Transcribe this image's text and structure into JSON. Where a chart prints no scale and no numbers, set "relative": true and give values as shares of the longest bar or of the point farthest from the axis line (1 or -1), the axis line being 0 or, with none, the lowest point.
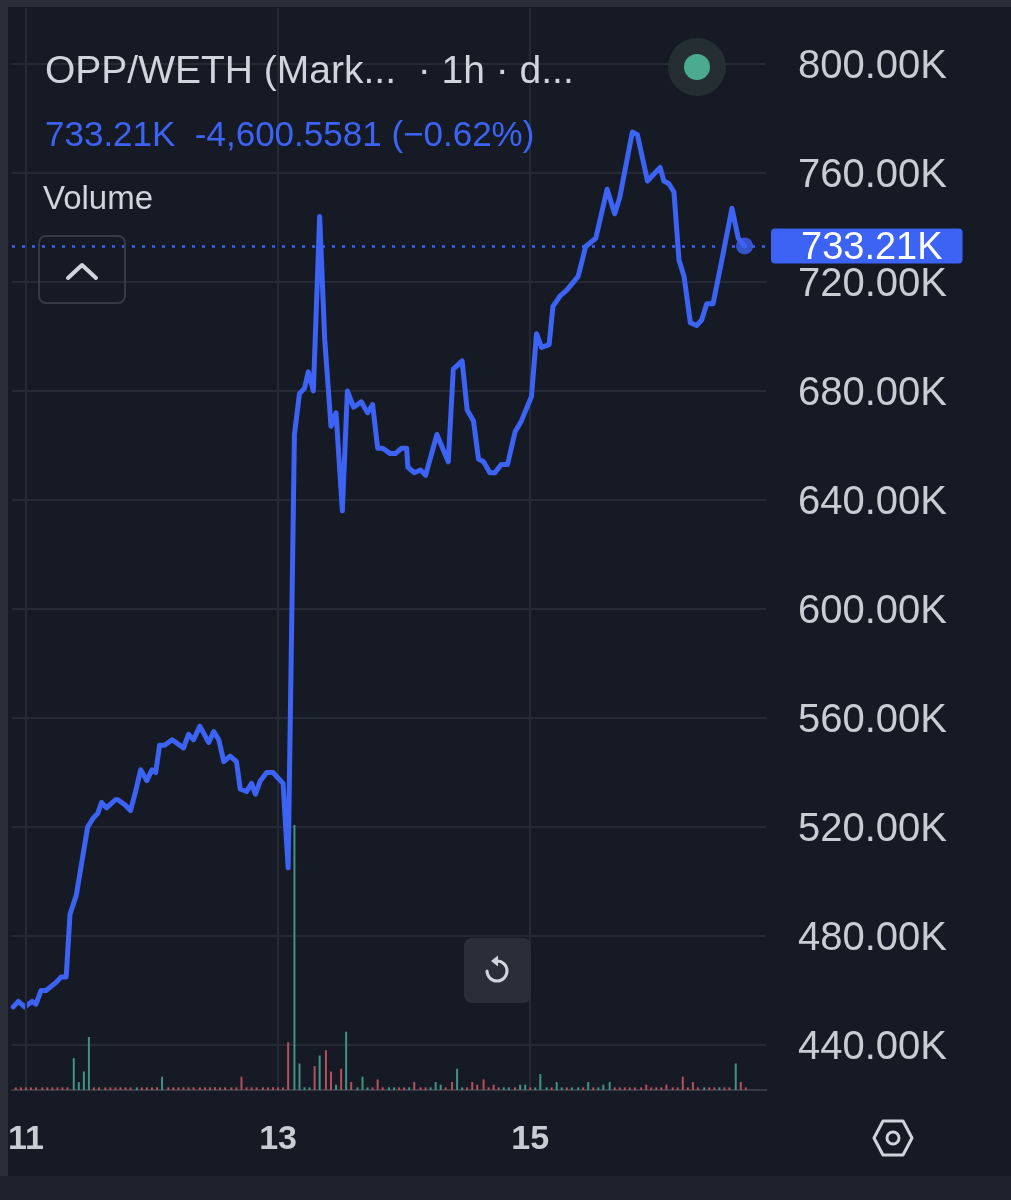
{
  "chart_data": [
    {
      "type": "line",
      "title": "OPP/WETH (Mark...  · 1h · d...",
      "subtitle": "733.21K  -4,600.5581 (−0.62%)",
      "xlim": [
        10.89,
        16.87
      ],
      "xticks": [
        11,
        13,
        15
      ],
      "ylim": [
        423.5,
        820.5
      ],
      "yticks": [
        {
          "value": 440,
          "label": "440.00K"
        },
        {
          "value": 480,
          "label": "480.00K"
        },
        {
          "value": 520,
          "label": "520.00K"
        },
        {
          "value": 560,
          "label": "560.00K"
        },
        {
          "value": 600,
          "label": "600.00K"
        },
        {
          "value": 640,
          "label": "640.00K"
        },
        {
          "value": 680,
          "label": "680.00K"
        },
        {
          "value": 720,
          "label": "720.00K"
        },
        {
          "value": 760,
          "label": "760.00K"
        },
        {
          "value": 800,
          "label": "800.00K"
        }
      ],
      "grid": true,
      "ref_lines": [
        {
          "axis": "y",
          "value": 733.21,
          "label": "733.21K",
          "color": "#3d63f5",
          "line_style": "dotted"
        }
      ],
      "series": [
        {
          "type": "line",
          "color": "#3d63f5",
          "marker": "none",
          "line_style": "solid",
          "x": [
            10.9,
            10.94,
            10.99,
            11.05,
            11.08,
            11.12,
            11.16,
            11.24,
            11.28,
            11.32,
            11.35,
            11.4,
            11.49,
            11.53,
            11.57,
            11.6,
            11.64,
            11.71,
            11.73,
            11.79,
            11.83,
            11.87,
            11.91,
            11.96,
            12.0,
            12.03,
            12.06,
            12.1,
            12.16,
            12.25,
            12.29,
            12.33,
            12.38,
            12.45,
            12.49,
            12.53,
            12.57,
            12.62,
            12.67,
            12.7,
            12.75,
            12.79,
            12.82,
            12.86,
            12.91,
            12.96,
            13.0,
            13.04,
            13.08,
            13.13,
            13.17,
            13.21,
            13.24,
            13.28,
            13.33,
            13.37,
            13.42,
            13.46,
            13.51,
            13.55,
            13.6,
            13.66,
            13.71,
            13.75,
            13.79,
            13.83,
            13.89,
            13.93,
            13.98,
            14.02,
            14.03,
            14.08,
            14.13,
            14.17,
            14.26,
            14.35,
            14.39,
            14.46,
            14.5,
            14.55,
            14.59,
            14.63,
            14.68,
            14.72,
            14.77,
            14.82,
            14.88,
            14.93,
            15.01,
            15.05,
            15.09,
            15.15,
            15.18,
            15.24,
            15.29,
            15.38,
            15.44,
            15.52,
            15.61,
            15.67,
            15.71,
            15.81,
            15.85,
            15.93,
            16.03,
            16.06,
            16.1,
            16.14,
            16.18,
            16.22,
            16.27,
            16.32,
            16.36,
            16.4,
            16.45,
            16.52,
            16.6,
            16.65,
            16.7
          ],
          "values": [
            454,
            456,
            454,
            456,
            455,
            460,
            460,
            463,
            465,
            465,
            488,
            495,
            520,
            523,
            525,
            529,
            527,
            530,
            530,
            528,
            526,
            533,
            541,
            537,
            541,
            540,
            550,
            550,
            552,
            549,
            554,
            552,
            557,
            551,
            555,
            552,
            544,
            546,
            544,
            534,
            533,
            536,
            532,
            537,
            540,
            540,
            538,
            536,
            505,
            664,
            679,
            681,
            687,
            680,
            744,
            699,
            667,
            672,
            636,
            680,
            674,
            676,
            672,
            675,
            659,
            659,
            657,
            657,
            659,
            659,
            652,
            650,
            651,
            649,
            664,
            654,
            688,
            691,
            673,
            669,
            655,
            654,
            650,
            650,
            653,
            653,
            665,
            669,
            678,
            701,
            696,
            697,
            711,
            715,
            717,
            722,
            733,
            736,
            754,
            745,
            751,
            775,
            774,
            757,
            762,
            757,
            756,
            753,
            728,
            722,
            705,
            704,
            706,
            712,
            712,
            728,
            747,
            736,
            733.21
          ]
        },
        {
          "type": "scatter",
          "color": "#3d63f5",
          "marker": "circle",
          "x": [
            16.7
          ],
          "values": [
            733.21
          ]
        }
      ]
    },
    {
      "type": "bar",
      "title": "Volume",
      "relative": true,
      "xlim": [
        10.89,
        16.87
      ],
      "xticks": [
        11,
        13,
        15
      ],
      "tick_labels": false,
      "grid": "x",
      "x": [
        10.92,
        10.96,
        11.0,
        11.04,
        11.08,
        11.13,
        11.17,
        11.21,
        11.25,
        11.29,
        11.33,
        11.38,
        11.42,
        11.46,
        11.5,
        11.54,
        11.58,
        11.63,
        11.67,
        11.71,
        11.75,
        11.79,
        11.83,
        11.88,
        11.92,
        11.96,
        12.0,
        12.04,
        12.08,
        12.13,
        12.17,
        12.21,
        12.25,
        12.29,
        12.33,
        12.38,
        12.42,
        12.46,
        12.5,
        12.54,
        12.58,
        12.63,
        12.67,
        12.71,
        12.75,
        12.79,
        12.83,
        12.88,
        12.92,
        12.96,
        13.0,
        13.04,
        13.08,
        13.13,
        13.17,
        13.21,
        13.25,
        13.29,
        13.33,
        13.38,
        13.42,
        13.46,
        13.5,
        13.54,
        13.58,
        13.63,
        13.67,
        13.71,
        13.75,
        13.79,
        13.83,
        13.88,
        13.92,
        13.96,
        14.0,
        14.04,
        14.08,
        14.13,
        14.17,
        14.21,
        14.25,
        14.29,
        14.33,
        14.38,
        14.42,
        14.46,
        14.5,
        14.54,
        14.58,
        14.63,
        14.67,
        14.71,
        14.75,
        14.79,
        14.83,
        14.88,
        14.92,
        14.96,
        15.0,
        15.04,
        15.08,
        15.13,
        15.17,
        15.21,
        15.25,
        15.29,
        15.33,
        15.38,
        15.42,
        15.46,
        15.5,
        15.54,
        15.58,
        15.63,
        15.67,
        15.71,
        15.75,
        15.79,
        15.83,
        15.88,
        15.92,
        15.96,
        16.0,
        16.04,
        16.08,
        16.13,
        16.17,
        16.21,
        16.25,
        16.29,
        16.33,
        16.38,
        16.42,
        16.46,
        16.5,
        16.54,
        16.58,
        16.63,
        16.67,
        16.71
      ],
      "values": [
        0.01,
        0.01,
        0.01,
        0.01,
        0.01,
        0.01,
        0.01,
        0.01,
        0.01,
        0.01,
        0.01,
        0.12,
        0.03,
        0.07,
        0.2,
        0.01,
        0.01,
        0.01,
        0.01,
        0.01,
        0.01,
        0.01,
        0.01,
        0.01,
        0.01,
        0.01,
        0.01,
        0.01,
        0.05,
        0.01,
        0.01,
        0.01,
        0.01,
        0.01,
        0.01,
        0.01,
        0.01,
        0.01,
        0.01,
        0.01,
        0.01,
        0.01,
        0.01,
        0.05,
        0.01,
        0.01,
        0.01,
        0.01,
        0.01,
        0.01,
        0.01,
        0.01,
        0.18,
        1,
        0.1,
        0.01,
        0.01,
        0.09,
        0.13,
        0.15,
        0.07,
        0.02,
        0.08,
        0.22,
        0.03,
        0.01,
        0.05,
        0.01,
        0.01,
        0.04,
        0.01,
        0.01,
        0.01,
        0.01,
        0.01,
        0.01,
        0.03,
        0.01,
        0.01,
        0.01,
        0.03,
        0.02,
        0.01,
        0.03,
        0.08,
        0.01,
        0.01,
        0.03,
        0.02,
        0.04,
        0.01,
        0.02,
        0.01,
        0.01,
        0.01,
        0.01,
        0.02,
        0.02,
        0.01,
        0.01,
        0.06,
        0.01,
        0.01,
        0.03,
        0.01,
        0.01,
        0.01,
        0.01,
        0.01,
        0.03,
        0.01,
        0.01,
        0.02,
        0.03,
        0.01,
        0.01,
        0.01,
        0.01,
        0.01,
        0.01,
        0.02,
        0.01,
        0.01,
        0.01,
        0.02,
        0.01,
        0.01,
        0.05,
        0.01,
        0.03,
        0.01,
        0.01,
        0.01,
        0.01,
        0.01,
        0.01,
        0.01,
        0.1,
        0.03,
        0.01
      ],
      "colors": [
        "#b5505b",
        "#b5505b",
        "#b5505b",
        "#b5505b",
        "#b5505b",
        "#b5505b",
        "#b5505b",
        "#b5505b",
        "#b5505b",
        "#b5505b",
        "#b5505b",
        "#3f9387",
        "#3f9387",
        "#3f9387",
        "#3f9387",
        "#b5505b",
        "#b5505b",
        "#b5505b",
        "#b5505b",
        "#b5505b",
        "#b5505b",
        "#b5505b",
        "#b5505b",
        "#3f9387",
        "#b5505b",
        "#b5505b",
        "#b5505b",
        "#b5505b",
        "#3f9387",
        "#b5505b",
        "#b5505b",
        "#b5505b",
        "#b5505b",
        "#b5505b",
        "#b5505b",
        "#b5505b",
        "#b5505b",
        "#b5505b",
        "#b5505b",
        "#b5505b",
        "#b5505b",
        "#b5505b",
        "#b5505b",
        "#b5505b",
        "#b5505b",
        "#b5505b",
        "#b5505b",
        "#b5505b",
        "#b5505b",
        "#b5505b",
        "#b5505b",
        "#b5505b",
        "#b5505b",
        "#3f9387",
        "#3f9387",
        "#3f9387",
        "#3f9387",
        "#b5505b",
        "#3f9387",
        "#b5505b",
        "#b5505b",
        "#3f9387",
        "#b5505b",
        "#3f9387",
        "#b5505b",
        "#3f9387",
        "#3f9387",
        "#3f9387",
        "#b5505b",
        "#b5505b",
        "#b5505b",
        "#3f9387",
        "#3f9387",
        "#b5505b",
        "#b5505b",
        "#3f9387",
        "#b5505b",
        "#b5505b",
        "#b5505b",
        "#3f9387",
        "#3f9387",
        "#3f9387",
        "#b5505b",
        "#b5505b",
        "#3f9387",
        "#3f9387",
        "#b5505b",
        "#b5505b",
        "#b5505b",
        "#b5505b",
        "#b5505b",
        "#b5505b",
        "#b5505b",
        "#3f9387",
        "#3f9387",
        "#b5505b",
        "#3f9387",
        "#3f9387",
        "#b5505b",
        "#3f9387",
        "#3f9387",
        "#3f9387",
        "#b5505b",
        "#3f9387",
        "#3f9387",
        "#b5505b",
        "#3f9387",
        "#3f9387",
        "#b5505b",
        "#3f9387",
        "#b5505b",
        "#3f9387",
        "#3f9387",
        "#3f9387",
        "#b5505b",
        "#b5505b",
        "#b5505b",
        "#b5505b",
        "#b5505b",
        "#b5505b",
        "#b5505b",
        "#b5505b",
        "#b5505b",
        "#b5505b",
        "#b5505b",
        "#b5505b",
        "#b5505b",
        "#b5505b",
        "#b5505b",
        "#b5505b",
        "#b5505b",
        "#3f9387",
        "#b5505b",
        "#b5505b",
        "#3f9387",
        "#b5505b",
        "#b5505b",
        "#3f9387",
        "#b5505b",
        "#b5505b"
      ]
    }
  ]
}
